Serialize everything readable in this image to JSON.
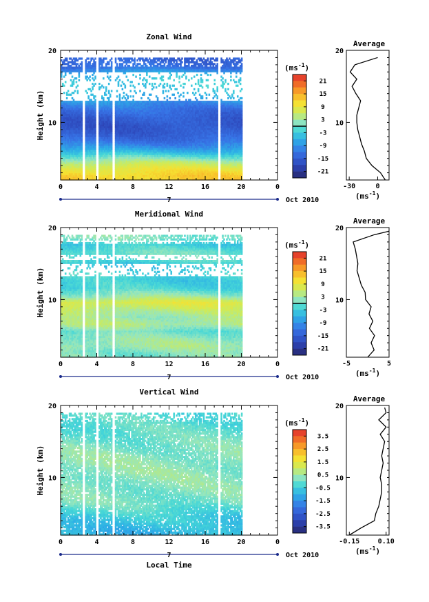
{
  "figure": {
    "shared": {
      "xticks": [
        "0",
        "4",
        "8",
        "12",
        "16",
        "20",
        "0"
      ],
      "date_marker": "7",
      "date_label": "Oct 2010",
      "xlabel": "Local Time",
      "ylabel": "Height (km)",
      "yticks": [
        "10",
        "20"
      ],
      "units": "(ms",
      "units_exp": "-1",
      "units_close": ")",
      "avg_units": "(ms",
      "avg_title": "Average"
    }
  },
  "chart_data": [
    {
      "type": "heatmap",
      "title": "Zonal Wind",
      "xlabel": "Local Time",
      "ylabel": "Height (km)",
      "xlim": [
        0,
        24
      ],
      "ylim": [
        2,
        20
      ],
      "colorbar_ticks": [
        "21",
        "15",
        "9",
        "3",
        "-3",
        "-9",
        "-15",
        "-21"
      ],
      "colorbar_range": [
        -24,
        24
      ],
      "color_scheme": "jet",
      "zero_line": true,
      "data_columns_hours": [
        0,
        20
      ],
      "gaps_hours": [
        [
          2.3,
          2.6
        ],
        [
          3.8,
          4.1
        ],
        [
          5.6,
          5.9
        ],
        [
          17.4,
          17.7
        ]
      ],
      "profile_by_height": [
        {
          "h": 2.5,
          "v": 12
        },
        {
          "h": 3.5,
          "v": 9
        },
        {
          "h": 4.5,
          "v": 4
        },
        {
          "h": 5.5,
          "v": -3
        },
        {
          "h": 6.5,
          "v": -9
        },
        {
          "h": 7.5,
          "v": -13
        },
        {
          "h": 8.5,
          "v": -15
        },
        {
          "h": 9.5,
          "v": -16
        },
        {
          "h": 10.5,
          "v": -15
        },
        {
          "h": 11.5,
          "v": -13
        },
        {
          "h": 12.5,
          "v": -10
        },
        {
          "h": 13.5,
          "v": -6
        },
        {
          "h": 14.5,
          "v": -4
        },
        {
          "h": 15.5,
          "v": -3
        },
        {
          "h": 16.5,
          "v": -5
        },
        {
          "h": 17.5,
          "v": -12
        },
        {
          "h": 18.5,
          "v": -14
        }
      ],
      "missing_heights": [
        [
          13.0,
          16.8
        ],
        [
          18.9,
          20
        ]
      ],
      "average": {
        "title": "Average",
        "xticks": [
          "-30",
          "0"
        ],
        "xlim": [
          -33,
          12
        ],
        "height": [
          2,
          3,
          4,
          5,
          6,
          7,
          8,
          9,
          10,
          11,
          12,
          13,
          14,
          15,
          16,
          17,
          18,
          19
        ],
        "value": [
          8,
          3,
          -6,
          -12,
          -14,
          -17,
          -19,
          -21,
          -22,
          -22,
          -20,
          -18,
          -23,
          -27,
          -22,
          -29,
          -24,
          0
        ]
      }
    },
    {
      "type": "heatmap",
      "title": "Meridional Wind",
      "xlabel": "Local Time",
      "ylabel": "Height (km)",
      "xlim": [
        0,
        24
      ],
      "ylim": [
        2,
        20
      ],
      "colorbar_ticks": [
        "21",
        "15",
        "9",
        "3",
        "-3",
        "-9",
        "-15",
        "-21"
      ],
      "colorbar_range": [
        -24,
        24
      ],
      "color_scheme": "jet",
      "zero_line": true,
      "data_columns_hours": [
        0,
        20
      ],
      "gaps_hours": [
        [
          2.3,
          2.6
        ],
        [
          3.8,
          4.1
        ],
        [
          5.6,
          5.9
        ],
        [
          17.4,
          17.7
        ]
      ],
      "profile_by_height": [
        {
          "h": 2.5,
          "v": 1
        },
        {
          "h": 3.5,
          "v": 3
        },
        {
          "h": 4.5,
          "v": 2
        },
        {
          "h": 5.5,
          "v": 0
        },
        {
          "h": 6.5,
          "v": 4
        },
        {
          "h": 7.5,
          "v": 3
        },
        {
          "h": 8.5,
          "v": 5
        },
        {
          "h": 9.5,
          "v": 8
        },
        {
          "h": 10.5,
          "v": 2
        },
        {
          "h": 11.5,
          "v": -2
        },
        {
          "h": 12.5,
          "v": -3
        },
        {
          "h": 13.5,
          "v": -2
        },
        {
          "h": 14.5,
          "v": -4
        },
        {
          "h": 15.5,
          "v": -1
        },
        {
          "h": 16.5,
          "v": 0
        },
        {
          "h": 17.5,
          "v": -3
        },
        {
          "h": 18.5,
          "v": 1
        }
      ],
      "missing_heights": [
        [
          13.2,
          15.0
        ],
        [
          15.5,
          16.2
        ],
        [
          17.8,
          18.2
        ],
        [
          18.9,
          20
        ]
      ],
      "average": {
        "title": "Average",
        "xticks": [
          "-5",
          "5"
        ],
        "xlim": [
          -5,
          5
        ],
        "height": [
          2,
          3,
          4,
          5,
          6,
          7,
          8,
          9,
          10,
          11,
          12,
          13,
          14,
          15,
          16,
          17,
          18,
          19,
          19.5
        ],
        "value": [
          0,
          1.5,
          0.8,
          1.6,
          0.4,
          1.2,
          0.3,
          0.8,
          -0.5,
          -0.6,
          -1.5,
          -2.0,
          -2.5,
          -2.3,
          -2.6,
          -2.9,
          -3.4,
          1.5,
          5
        ]
      }
    },
    {
      "type": "heatmap",
      "title": "Vertical Wind",
      "xlabel": "Local Time",
      "ylabel": "Height (km)",
      "xlim": [
        0,
        24
      ],
      "ylim": [
        2,
        20
      ],
      "colorbar_ticks": [
        "3.5",
        "2.5",
        "1.5",
        "0.5",
        "-0.5",
        "-1.5",
        "-2.5",
        "-3.5"
      ],
      "colorbar_range": [
        -4,
        4
      ],
      "color_scheme": "jet",
      "zero_line": false,
      "data_columns_hours": [
        0,
        20
      ],
      "gaps_hours": [
        [
          2.3,
          2.6
        ],
        [
          3.8,
          4.1
        ],
        [
          5.6,
          5.9
        ],
        [
          17.4,
          17.7
        ]
      ],
      "profile_by_height": [
        {
          "h": 2.5,
          "v": -0.9
        },
        {
          "h": 4.5,
          "v": -0.5
        },
        {
          "h": 6.5,
          "v": 0.1
        },
        {
          "h": 8.5,
          "v": 0.2
        },
        {
          "h": 10.5,
          "v": 0.3
        },
        {
          "h": 12.5,
          "v": 0.3
        },
        {
          "h": 14.5,
          "v": 0.1
        },
        {
          "h": 16.5,
          "v": -0.1
        },
        {
          "h": 18.5,
          "v": -0.2
        }
      ],
      "missing_heights": [],
      "average": {
        "title": "Average",
        "xticks": [
          "-0.15",
          "0.10"
        ],
        "xlim": [
          -0.17,
          0.12
        ],
        "height": [
          2,
          3,
          4,
          5,
          6,
          7,
          8,
          9,
          10,
          11,
          12,
          13,
          14,
          15,
          16,
          17,
          18,
          19,
          19.7
        ],
        "value": [
          -0.15,
          -0.07,
          0.02,
          0.03,
          0.05,
          0.06,
          0.07,
          0.07,
          0.06,
          0.07,
          0.08,
          0.07,
          0.08,
          0.09,
          0.06,
          0.1,
          0.05,
          0.1,
          0.09
        ]
      }
    }
  ]
}
